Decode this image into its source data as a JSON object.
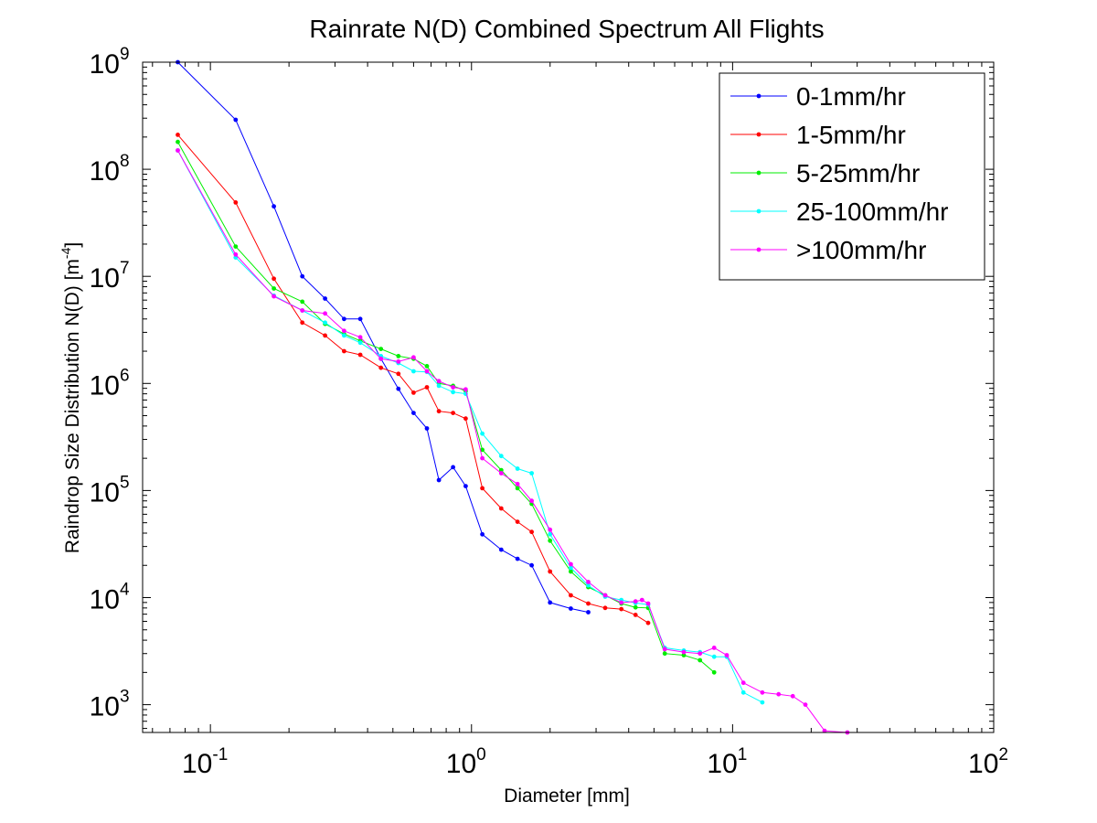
{
  "chart_data": {
    "type": "line",
    "title": "Rainrate N(D) Combined Spectrum All Flights",
    "xlabel": "Diameter [mm]",
    "ylabel_main": "Raindrop Size Distribution N(D) [m",
    "ylabel_sup": "-4",
    "ylabel_close": "]",
    "x_scale": "log",
    "y_scale": "log",
    "xlim": [
      0.055,
      100
    ],
    "ylim": [
      550,
      1000000000
    ],
    "grid": false,
    "legend_position": "top-right",
    "x_ticks": [
      {
        "value": 0.1,
        "base": "10",
        "exp": "-1"
      },
      {
        "value": 1,
        "base": "10",
        "exp": "0"
      },
      {
        "value": 10,
        "base": "10",
        "exp": "1"
      },
      {
        "value": 100,
        "base": "10",
        "exp": "2"
      }
    ],
    "y_ticks": [
      {
        "value": 1000,
        "base": "10",
        "exp": "3"
      },
      {
        "value": 10000,
        "base": "10",
        "exp": "4"
      },
      {
        "value": 100000,
        "base": "10",
        "exp": "5"
      },
      {
        "value": 1000000,
        "base": "10",
        "exp": "6"
      },
      {
        "value": 10000000,
        "base": "10",
        "exp": "7"
      },
      {
        "value": 100000000,
        "base": "10",
        "exp": "8"
      },
      {
        "value": 1000000000,
        "base": "10",
        "exp": "9"
      }
    ],
    "series": [
      {
        "name": "0-1mm/hr",
        "color": "#0000ff",
        "x": [
          0.075,
          0.125,
          0.175,
          0.225,
          0.275,
          0.325,
          0.375,
          0.45,
          0.525,
          0.6,
          0.675,
          0.75,
          0.85,
          0.95,
          1.1,
          1.3,
          1.5,
          1.7,
          2.0,
          2.4,
          2.8
        ],
        "y": [
          1000000000,
          290000000,
          45000000,
          10000000,
          6200000,
          4000000,
          4000000,
          1700000,
          890000,
          530000,
          380000,
          125000,
          165000,
          110000,
          39000,
          28000,
          23000,
          20000,
          9000,
          7900,
          7300
        ]
      },
      {
        "name": "1-5mm/hr",
        "color": "#ff0000",
        "x": [
          0.075,
          0.125,
          0.175,
          0.225,
          0.275,
          0.325,
          0.375,
          0.45,
          0.525,
          0.6,
          0.675,
          0.75,
          0.85,
          0.95,
          1.1,
          1.3,
          1.5,
          1.7,
          2.0,
          2.4,
          2.8,
          3.25,
          3.75,
          4.25,
          4.75
        ],
        "y": [
          210000000,
          49000000,
          9500000,
          3700000,
          2800000,
          2000000,
          1850000,
          1400000,
          1230000,
          820000,
          920000,
          550000,
          530000,
          470000,
          105000,
          68000,
          51000,
          41000,
          17500,
          10500,
          8800,
          8000,
          7800,
          6900,
          5800
        ]
      },
      {
        "name": "5-25mm/hr",
        "color": "#00ee00",
        "x": [
          0.075,
          0.125,
          0.175,
          0.225,
          0.275,
          0.325,
          0.375,
          0.45,
          0.525,
          0.6,
          0.675,
          0.75,
          0.85,
          0.95,
          1.1,
          1.3,
          1.5,
          1.7,
          2.0,
          2.4,
          2.8,
          3.25,
          3.75,
          4.25,
          4.75,
          5.5,
          6.5,
          7.5,
          8.5
        ],
        "y": [
          180000000,
          19000000,
          7700000,
          5800000,
          3600000,
          2900000,
          2500000,
          2100000,
          1800000,
          1700000,
          1450000,
          1000000,
          950000,
          850000,
          240000,
          155000,
          105000,
          75000,
          34000,
          17500,
          12500,
          10500,
          8800,
          8100,
          8000,
          3000,
          2900,
          2600,
          2000
        ]
      },
      {
        "name": "25-100mm/hr",
        "color": "#00ffff",
        "x": [
          0.075,
          0.125,
          0.175,
          0.225,
          0.275,
          0.325,
          0.375,
          0.45,
          0.525,
          0.6,
          0.675,
          0.75,
          0.85,
          0.95,
          1.1,
          1.3,
          1.5,
          1.7,
          2.0,
          2.4,
          2.8,
          3.25,
          3.75,
          4.25,
          4.75,
          5.5,
          6.5,
          7.5,
          8.5,
          9.5,
          11,
          13
        ],
        "y": [
          150000000,
          15000000,
          6600000,
          4800000,
          3700000,
          2800000,
          2400000,
          1800000,
          1550000,
          1300000,
          1280000,
          950000,
          830000,
          800000,
          340000,
          210000,
          160000,
          145000,
          39000,
          19000,
          13000,
          10200,
          9500,
          8900,
          8600,
          3400,
          3200,
          3100,
          2800,
          2800,
          1300,
          1050
        ]
      },
      {
        "name": ">100mm/hr",
        "color": "#ff00ff",
        "x": [
          0.075,
          0.125,
          0.175,
          0.225,
          0.275,
          0.325,
          0.375,
          0.45,
          0.525,
          0.6,
          0.675,
          0.75,
          0.85,
          0.95,
          1.1,
          1.3,
          1.5,
          1.7,
          2.0,
          2.4,
          2.8,
          3.25,
          3.75,
          4.25,
          4.5,
          4.75,
          5.5,
          6.5,
          7.5,
          8.5,
          9.5,
          11,
          13,
          15,
          17,
          19,
          22.5,
          27.5
        ],
        "y": [
          150000000,
          16000000,
          6500000,
          4800000,
          4500000,
          3100000,
          2700000,
          1700000,
          1600000,
          1750000,
          1300000,
          1050000,
          920000,
          880000,
          200000,
          145000,
          115000,
          80000,
          43000,
          20500,
          14000,
          10500,
          9000,
          9200,
          9500,
          8800,
          3300,
          3100,
          3000,
          3400,
          2900,
          1600,
          1300,
          1250,
          1200,
          1000,
          570,
          550
        ]
      }
    ]
  }
}
